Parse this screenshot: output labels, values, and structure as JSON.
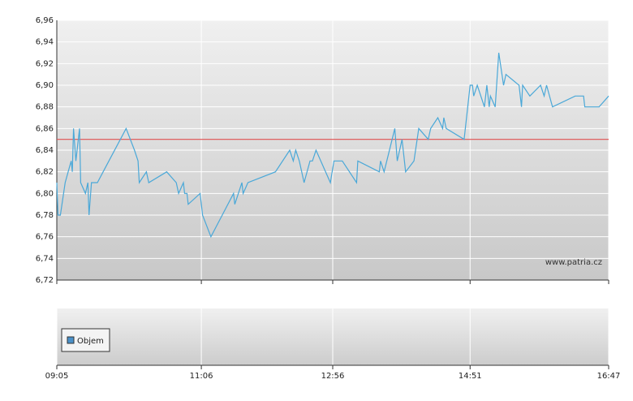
{
  "chart_data": {
    "type": "line",
    "x": [
      "09:05",
      "09:06",
      "09:08",
      "09:12",
      "09:17",
      "09:18",
      "09:19",
      "09:21",
      "09:24",
      "09:25",
      "09:29",
      "09:31",
      "09:32",
      "09:34",
      "09:39",
      "10:03",
      "10:10",
      "10:13",
      "10:14",
      "10:20",
      "10:22",
      "10:37",
      "10:45",
      "10:47",
      "10:51",
      "10:52",
      "10:54",
      "10:55",
      "11:05",
      "11:07",
      "11:14",
      "11:33",
      "11:34",
      "11:40",
      "11:41",
      "11:45",
      "12:08",
      "12:20",
      "12:23",
      "12:25",
      "12:28",
      "12:32",
      "12:37",
      "12:39",
      "12:42",
      "12:54",
      "12:57",
      "13:04",
      "13:16",
      "13:17",
      "13:35",
      "13:36",
      "13:39",
      "13:48",
      "13:50",
      "13:54",
      "13:57",
      "14:04",
      "14:08",
      "14:16",
      "14:18",
      "14:24",
      "14:28",
      "14:29",
      "14:31",
      "14:46",
      "14:51",
      "14:53",
      "14:54",
      "14:57",
      "15:03",
      "15:05",
      "15:07",
      "15:08",
      "15:12",
      "15:15",
      "15:19",
      "15:21",
      "15:32",
      "15:34",
      "15:35",
      "15:41",
      "15:50",
      "15:53",
      "15:55",
      "16:00",
      "16:19",
      "16:26",
      "16:27",
      "16:39",
      "16:47"
    ],
    "values": [
      6.81,
      6.78,
      6.78,
      6.81,
      6.83,
      6.82,
      6.86,
      6.83,
      6.86,
      6.81,
      6.8,
      6.81,
      6.78,
      6.81,
      6.81,
      6.86,
      6.84,
      6.83,
      6.81,
      6.82,
      6.81,
      6.82,
      6.81,
      6.8,
      6.81,
      6.8,
      6.8,
      6.79,
      6.8,
      6.78,
      6.76,
      6.8,
      6.79,
      6.81,
      6.8,
      6.81,
      6.82,
      6.84,
      6.83,
      6.84,
      6.83,
      6.81,
      6.83,
      6.83,
      6.84,
      6.81,
      6.83,
      6.83,
      6.81,
      6.83,
      6.82,
      6.83,
      6.82,
      6.86,
      6.83,
      6.85,
      6.82,
      6.83,
      6.86,
      6.85,
      6.86,
      6.87,
      6.86,
      6.87,
      6.86,
      6.85,
      6.9,
      6.9,
      6.89,
      6.9,
      6.88,
      6.9,
      6.88,
      6.89,
      6.88,
      6.93,
      6.9,
      6.91,
      6.9,
      6.88,
      6.9,
      6.89,
      6.9,
      6.89,
      6.9,
      6.88,
      6.89,
      6.89,
      6.88,
      6.88,
      6.89
    ],
    "color": "#4aa8d8",
    "ref_line": 6.85,
    "ref_color": "#e05050",
    "ylim": [
      6.72,
      6.96
    ],
    "yticks": [
      {
        "value": 6.72,
        "label": "6,72"
      },
      {
        "value": 6.74,
        "label": "6,74"
      },
      {
        "value": 6.76,
        "label": "6,76"
      },
      {
        "value": 6.78,
        "label": "6,78"
      },
      {
        "value": 6.8,
        "label": "6,80"
      },
      {
        "value": 6.82,
        "label": "6,82"
      },
      {
        "value": 6.84,
        "label": "6,84"
      },
      {
        "value": 6.86,
        "label": "6,86"
      },
      {
        "value": 6.88,
        "label": "6,88"
      },
      {
        "value": 6.9,
        "label": "6,90"
      },
      {
        "value": 6.92,
        "label": "6,92"
      },
      {
        "value": 6.94,
        "label": "6,94"
      },
      {
        "value": 6.96,
        "label": "6,96"
      }
    ],
    "xlim": [
      "09:05",
      "16:47"
    ],
    "xticks": [
      "09:05",
      "11:06",
      "12:56",
      "14:51",
      "16:47"
    ],
    "grid": true,
    "watermark": "www.patria.cz",
    "volume_legend": "Objem",
    "volume_color": "#4a90c8"
  }
}
